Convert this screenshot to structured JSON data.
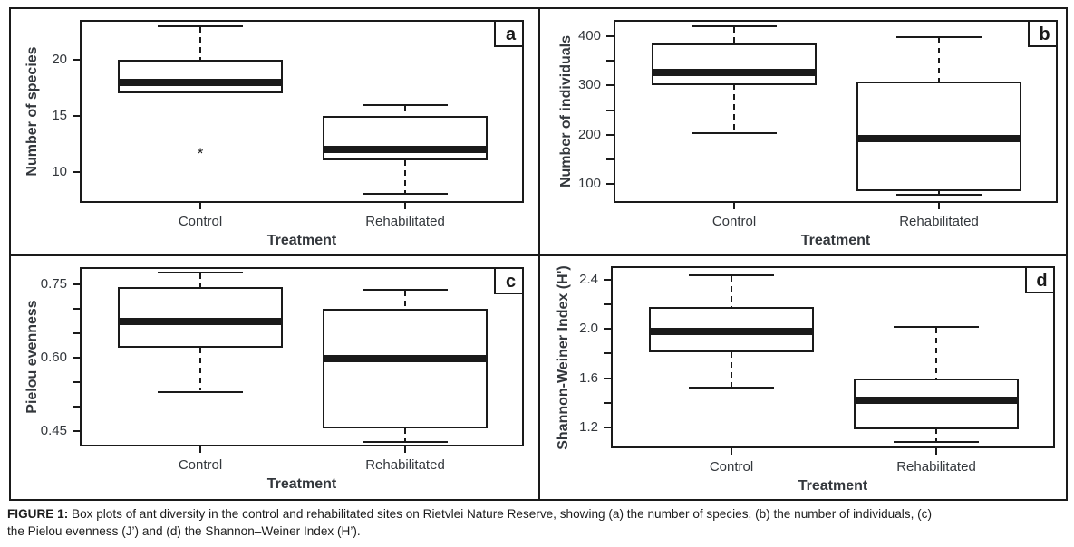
{
  "caption": {
    "label": "FIGURE 1:",
    "line1": "Box plots of ant diversity in the control and rehabilitated sites on Rietvlei Nature Reserve, showing (a) the number of species, (b) the number of individuals, (c)",
    "line2": "the Pielou evenness (J’) and (d) the Shannon–Weiner Index (H’)."
  },
  "colors": {
    "ink": "#1a1a1a",
    "axis_text": "#33373c",
    "caption_text": "#1c1c1c",
    "background": "#ffffff"
  },
  "chart_data": [
    {
      "type": "box",
      "panel_label": "a",
      "xlabel": "Treatment",
      "ylabel": "Number of species",
      "categories": [
        "Control",
        "Rehabilitated"
      ],
      "ylim": [
        7.2,
        23.6
      ],
      "yticks": [
        {
          "v": 10,
          "label": "10"
        },
        {
          "v": 15,
          "label": "15"
        },
        {
          "v": 20,
          "label": "20"
        }
      ],
      "yticks_minor": [],
      "series": [
        {
          "name": "Control",
          "q1": 17,
          "median": 18,
          "q3": 20,
          "whisker_low": null,
          "whisker_high": 23,
          "outliers": [
            11.7
          ]
        },
        {
          "name": "Rehabilitated",
          "q1": 11,
          "median": 12,
          "q3": 15,
          "whisker_low": 8,
          "whisker_high": 16,
          "outliers": []
        }
      ]
    },
    {
      "type": "box",
      "panel_label": "b",
      "xlabel": "Treatment",
      "ylabel": "Number of individuals",
      "categories": [
        "Control",
        "Rehabilitated"
      ],
      "ylim": [
        62,
        433
      ],
      "yticks": [
        {
          "v": 100,
          "label": "100"
        },
        {
          "v": 200,
          "label": "200"
        },
        {
          "v": 300,
          "label": "300"
        },
        {
          "v": 400,
          "label": "400"
        }
      ],
      "yticks_minor": [
        150,
        250,
        350
      ],
      "series": [
        {
          "name": "Control",
          "q1": 302,
          "median": 327,
          "q3": 386,
          "whisker_low": 203,
          "whisker_high": 420,
          "outliers": []
        },
        {
          "name": "Rehabilitated",
          "q1": 86,
          "median": 193,
          "q3": 308,
          "whisker_low": 79,
          "whisker_high": 398,
          "outliers": []
        }
      ]
    },
    {
      "type": "box",
      "panel_label": "c",
      "xlabel": "Treatment",
      "ylabel": "Pielou evenness",
      "categories": [
        "Control",
        "Rehabilitated"
      ],
      "ylim": [
        0.418,
        0.786
      ],
      "yticks": [
        {
          "v": 0.45,
          "label": "0.45"
        },
        {
          "v": 0.6,
          "label": "0.60"
        },
        {
          "v": 0.75,
          "label": "0.75"
        }
      ],
      "yticks_minor": [
        0.5,
        0.55,
        0.65,
        0.7
      ],
      "series": [
        {
          "name": "Control",
          "q1": 0.62,
          "median": 0.675,
          "q3": 0.745,
          "whisker_low": 0.53,
          "whisker_high": 0.775,
          "outliers": []
        },
        {
          "name": "Rehabilitated",
          "q1": 0.455,
          "median": 0.598,
          "q3": 0.7,
          "whisker_low": 0.428,
          "whisker_high": 0.74,
          "outliers": []
        }
      ]
    },
    {
      "type": "box",
      "panel_label": "d",
      "xlabel": "Treatment",
      "ylabel": "Shannon-Weiner Index (H')",
      "categories": [
        "Control",
        "Rehabilitated"
      ],
      "ylim": [
        1.03,
        2.51
      ],
      "yticks": [
        {
          "v": 1.2,
          "label": "1.2"
        },
        {
          "v": 1.6,
          "label": "1.6"
        },
        {
          "v": 2.0,
          "label": "2.0"
        },
        {
          "v": 2.4,
          "label": "2.4"
        }
      ],
      "yticks_minor": [
        1.4,
        1.8,
        2.2
      ],
      "series": [
        {
          "name": "Control",
          "q1": 1.81,
          "median": 1.98,
          "q3": 2.18,
          "whisker_low": 1.52,
          "whisker_high": 2.44,
          "outliers": []
        },
        {
          "name": "Rehabilitated",
          "q1": 1.19,
          "median": 1.42,
          "q3": 1.6,
          "whisker_low": 1.08,
          "whisker_high": 2.02,
          "outliers": []
        }
      ]
    }
  ]
}
